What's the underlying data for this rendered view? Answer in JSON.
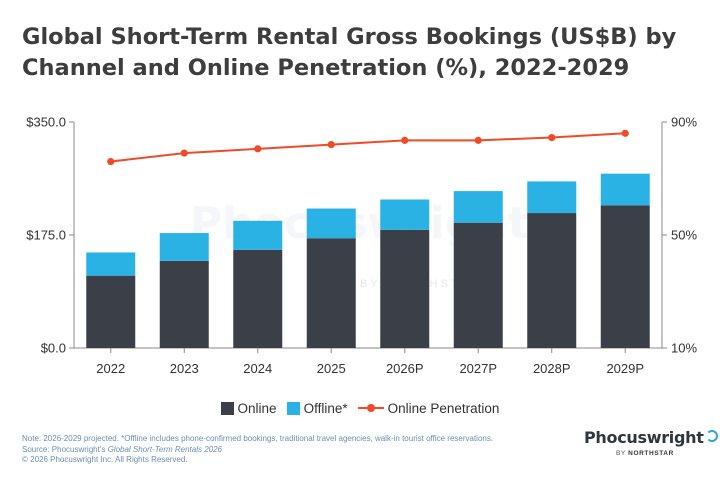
{
  "title": "Global Short-Term Rental Gross Bookings (US$B) by Channel and Online Penetration (%), 2022-2029",
  "legend": {
    "online": "Online",
    "offline": "Offline*",
    "penetration": "Online Penetration"
  },
  "colors": {
    "online": "#3b4048",
    "offline": "#2ab2e4",
    "penetration": "#f04a26"
  },
  "footnote": {
    "line1": "Note: 2026-2029 projected.  *Offline includes phone-confirmed bookings, traditional travel agencies, walk-in tourist office reservations.",
    "source_prefix": "Source: Phocuswright's ",
    "source_title": "Global Short-Term Rentals 2026",
    "copyright": "© 2026 Phocuswright Inc. All Rights Reserved."
  },
  "logo": {
    "name": "Phocuswright",
    "by": "BY",
    "brand": "NORTHSTAR"
  },
  "watermark": {
    "name": "Phocuswright",
    "sub": "BY NORTHSTAR"
  },
  "chart_data": {
    "type": "bar",
    "stacked": true,
    "categories": [
      "2022",
      "2023",
      "2024",
      "2025",
      "2026P",
      "2027P",
      "2028P",
      "2029P"
    ],
    "series": [
      {
        "name": "Online",
        "values": [
          112,
          135,
          152,
          170,
          183,
          194,
          209,
          221
        ]
      },
      {
        "name": "Offline*",
        "values": [
          36,
          43,
          45,
          46,
          47,
          49,
          49,
          49
        ]
      }
    ],
    "line_series": [
      {
        "name": "Online Penetration",
        "values": [
          76,
          79,
          80.5,
          82,
          83.5,
          83.5,
          84.5,
          86
        ]
      }
    ],
    "y_left": {
      "ticks": [
        "$0.0",
        "$175.0",
        "$350.0"
      ],
      "ylim": [
        0,
        350
      ]
    },
    "y_right": {
      "ticks": [
        "10%",
        "50%",
        "90%"
      ],
      "ylim": [
        10,
        90
      ]
    },
    "grid": false,
    "legend_position": "bottom"
  }
}
